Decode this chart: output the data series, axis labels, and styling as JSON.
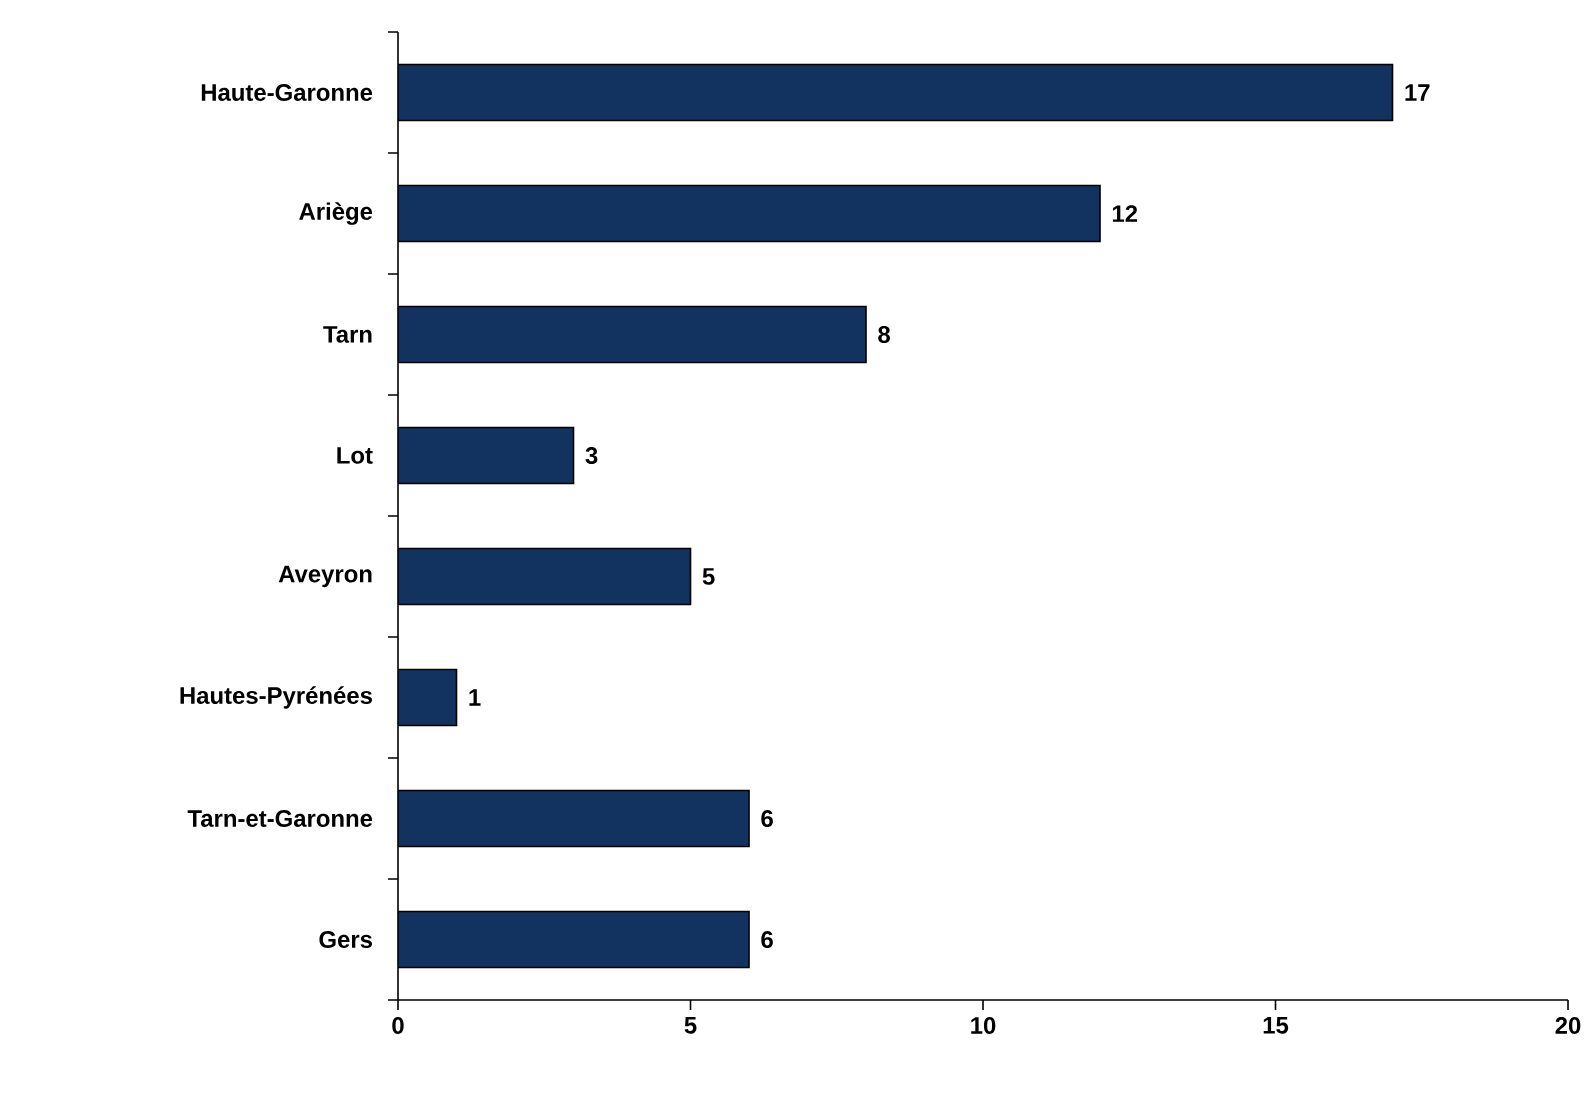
{
  "chart_data": {
    "type": "bar",
    "orientation": "horizontal",
    "categories": [
      "Haute-Garonne",
      "Ariège",
      "Tarn",
      "Lot",
      "Aveyron",
      "Hautes-Pyrénées",
      "Tarn-et-Garonne",
      "Gers"
    ],
    "values": [
      17,
      12,
      8,
      3,
      5,
      1,
      6,
      6
    ],
    "color": "#12335f",
    "xlim": [
      0,
      20
    ],
    "xticks": [
      0,
      5,
      10,
      15,
      20
    ],
    "data_labels": true
  }
}
